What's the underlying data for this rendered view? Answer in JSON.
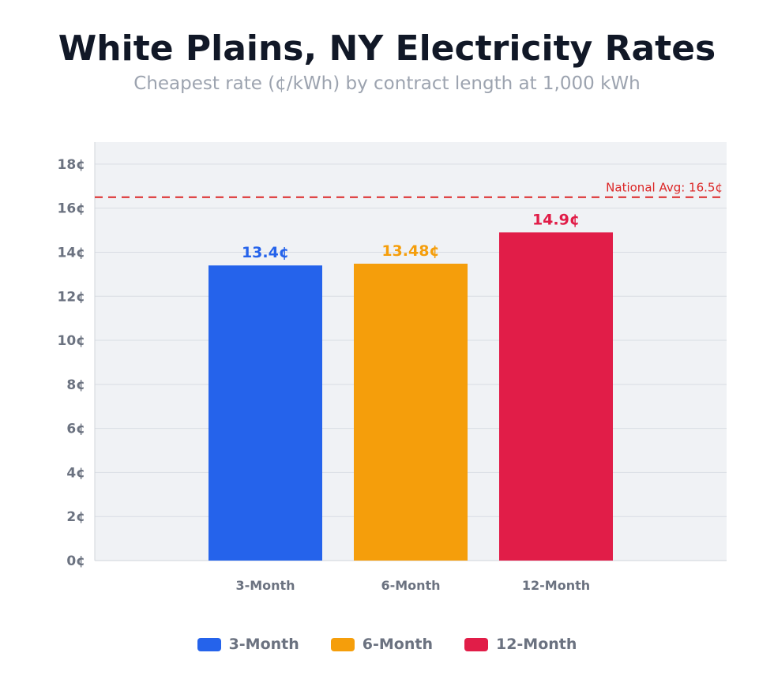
{
  "chart_data": {
    "type": "bar",
    "title": "White Plains, NY Electricity Rates",
    "subtitle": "Cheapest rate (¢/kWh) by contract length at 1,000 kWh",
    "categories": [
      "3-Month",
      "6-Month",
      "12-Month"
    ],
    "values": [
      13.4,
      13.48,
      14.9
    ],
    "data_labels": [
      "13.4¢",
      "13.48¢",
      "14.9¢"
    ],
    "colors": [
      "#2563eb",
      "#f59e0b",
      "#e11d48"
    ],
    "ylim": [
      0,
      19
    ],
    "yticks": [
      0,
      2,
      4,
      6,
      8,
      10,
      12,
      14,
      16,
      18
    ],
    "ytick_labels": [
      "0¢",
      "2¢",
      "4¢",
      "6¢",
      "8¢",
      "10¢",
      "12¢",
      "14¢",
      "16¢",
      "18¢"
    ],
    "grid": true,
    "reference_line": {
      "value": 16.5,
      "label": "National Avg: 16.5¢",
      "color": "#dc2626",
      "style": "dashed"
    },
    "legend": {
      "placement": "bottom",
      "entries": [
        "3-Month",
        "6-Month",
        "12-Month"
      ]
    }
  }
}
